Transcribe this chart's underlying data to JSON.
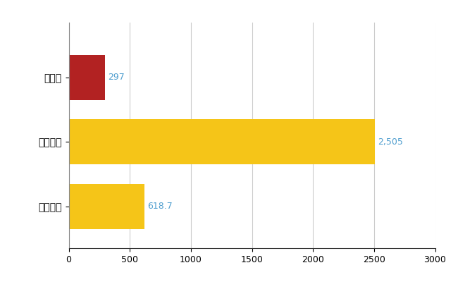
{
  "categories": [
    "島根県",
    "全国最大",
    "全国平均"
  ],
  "values": [
    297,
    2505,
    618.7
  ],
  "bar_colors": [
    "#b22222",
    "#f5c518",
    "#f5c518"
  ],
  "label_color": "#4f9ecf",
  "xlim": [
    0,
    3000
  ],
  "xticks": [
    0,
    500,
    1000,
    1500,
    2000,
    2500,
    3000
  ],
  "bar_height": 0.7,
  "value_labels": [
    "297",
    "2,505",
    "618.7"
  ],
  "background_color": "#ffffff",
  "grid_color": "#cccccc",
  "label_fontsize": 9,
  "tick_fontsize": 9
}
